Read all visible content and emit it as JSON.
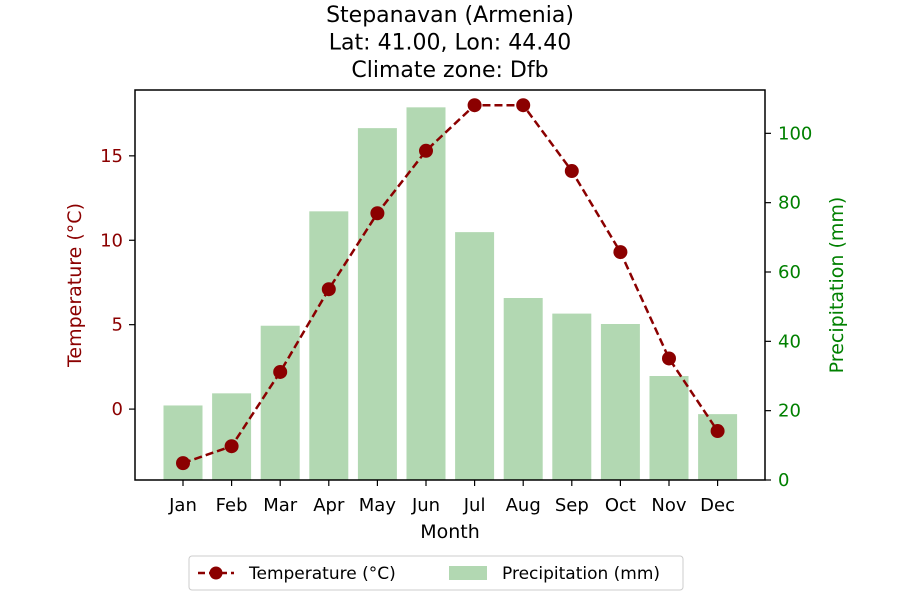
{
  "chart_data": {
    "type": "bar",
    "title_lines": [
      "Stepanavan (Armenia)",
      "Lat: 41.00, Lon: 44.40",
      "Climate zone: Dfb"
    ],
    "xlabel": "Month",
    "ylabel_left": "Temperature (°C)",
    "ylabel_right": "Precipitation (mm)",
    "categories": [
      "Jan",
      "Feb",
      "Mar",
      "Apr",
      "May",
      "Jun",
      "Jul",
      "Aug",
      "Sep",
      "Oct",
      "Nov",
      "Dec"
    ],
    "y_left": {
      "lim": [
        -4.2,
        18.9
      ],
      "ticks": [
        0,
        5,
        10,
        15
      ],
      "color": "#8b0000"
    },
    "y_right": {
      "lim": [
        0,
        112.5
      ],
      "ticks": [
        0,
        20,
        40,
        60,
        80,
        100
      ],
      "color": "#008000"
    },
    "series": [
      {
        "name": "Temperature (°C)",
        "type": "line",
        "axis": "left",
        "style": "dashed-with-circle-markers",
        "color": "#8b0000",
        "values": [
          -3.2,
          -2.2,
          2.2,
          7.1,
          11.6,
          15.3,
          18.0,
          18.0,
          14.1,
          9.3,
          3.0,
          -1.3
        ]
      },
      {
        "name": "Precipitation (mm)",
        "type": "bar",
        "axis": "right",
        "color": "#b2d8b2",
        "values": [
          21.5,
          25,
          44.5,
          77.5,
          101.5,
          107.5,
          71.5,
          52.5,
          48,
          45,
          30,
          19
        ]
      }
    ],
    "legend": {
      "placement": "bottom-center",
      "ncol": 2
    }
  }
}
